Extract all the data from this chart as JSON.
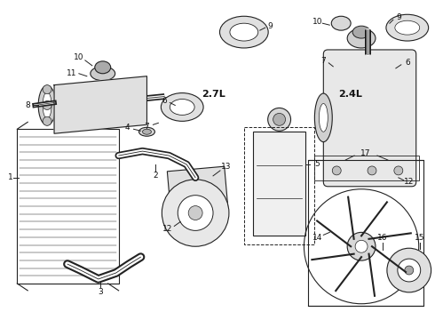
{
  "background_color": "#ffffff",
  "line_color": "#222222",
  "label_color": "#111111",
  "fig_width": 4.9,
  "fig_height": 3.6,
  "dpi": 100
}
